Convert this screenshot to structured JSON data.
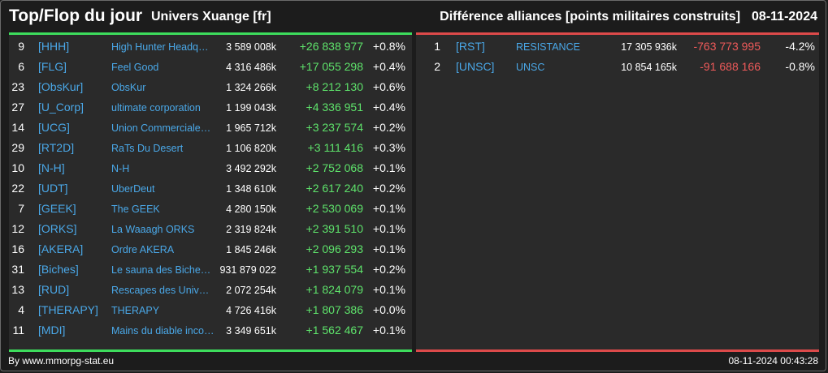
{
  "header": {
    "title": "Top/Flop du jour",
    "universe": "Univers Xuange [fr]",
    "subtitle": "Différence alliances [points militaires construits]",
    "date": "08-11-2024"
  },
  "top": [
    {
      "rank": "9",
      "tag": "[HHH]",
      "name": "High Hunter Headq…",
      "points": "3 589 008k",
      "diff": "+26 838 977",
      "pct": "+0.8%"
    },
    {
      "rank": "6",
      "tag": "[FLG]",
      "name": "Feel Good",
      "points": "4 316 486k",
      "diff": "+17 055 298",
      "pct": "+0.4%"
    },
    {
      "rank": "23",
      "tag": "[ObsKur]",
      "name": "ObsKur",
      "points": "1 324 266k",
      "diff": "+8 212 130",
      "pct": "+0.6%"
    },
    {
      "rank": "27",
      "tag": "[U_Corp]",
      "name": "ultimate corporation",
      "points": "1 199 043k",
      "diff": "+4 336 951",
      "pct": "+0.4%"
    },
    {
      "rank": "14",
      "tag": "[UCG]",
      "name": "Union Commerciale…",
      "points": "1 965 712k",
      "diff": "+3 237 574",
      "pct": "+0.2%"
    },
    {
      "rank": "29",
      "tag": "[RT2D]",
      "name": "RaTs Du Desert",
      "points": "1 106 820k",
      "diff": "+3 111 416",
      "pct": "+0.3%"
    },
    {
      "rank": "10",
      "tag": "[N-H]",
      "name": "N-H",
      "points": "3 492 292k",
      "diff": "+2 752 068",
      "pct": "+0.1%"
    },
    {
      "rank": "22",
      "tag": "[UDT]",
      "name": "UberDeut",
      "points": "1 348 610k",
      "diff": "+2 617 240",
      "pct": "+0.2%"
    },
    {
      "rank": "7",
      "tag": "[GEEK]",
      "name": "The GEEK",
      "points": "4 280 150k",
      "diff": "+2 530 069",
      "pct": "+0.1%"
    },
    {
      "rank": "12",
      "tag": "[ORKS]",
      "name": "La Waaagh ORKS",
      "points": "2 319 824k",
      "diff": "+2 391 510",
      "pct": "+0.1%"
    },
    {
      "rank": "16",
      "tag": "[AKERA]",
      "name": "Ordre AKERA",
      "points": "1 845 246k",
      "diff": "+2 096 293",
      "pct": "+0.1%"
    },
    {
      "rank": "31",
      "tag": "[Biches]",
      "name": "Le sauna des Biche…",
      "points": "931 879 022",
      "diff": "+1 937 554",
      "pct": "+0.2%"
    },
    {
      "rank": "13",
      "tag": "[RUD]",
      "name": "Rescapes des Univ…",
      "points": "2 072 254k",
      "diff": "+1 824 079",
      "pct": "+0.1%"
    },
    {
      "rank": "4",
      "tag": "[THERAPY]",
      "name": "THERAPY",
      "points": "4 726 416k",
      "diff": "+1 807 386",
      "pct": "+0.0%"
    },
    {
      "rank": "11",
      "tag": "[MDI]",
      "name": "Mains du diable inco…",
      "points": "3 349 651k",
      "diff": "+1 562 467",
      "pct": "+0.1%"
    }
  ],
  "flop": [
    {
      "rank": "1",
      "tag": "[RST]",
      "name": "RESISTANCE",
      "points": "17 305 936k",
      "diff": "-763 773 995",
      "pct": "-4.2%"
    },
    {
      "rank": "2",
      "tag": "[UNSC]",
      "name": "UNSC",
      "points": "10 854 165k",
      "diff": "-91 688 166",
      "pct": "-0.8%"
    }
  ],
  "footer": {
    "source": "By www.mmorpg-stat.eu",
    "timestamp": "08-11-2024 00:43:28"
  },
  "colors": {
    "up": "#5ee36b",
    "down": "#ef5a5a",
    "tag": "#4aa8e8",
    "top_bar": "#3ddc5c",
    "flop_bar": "#dc4a4a"
  }
}
